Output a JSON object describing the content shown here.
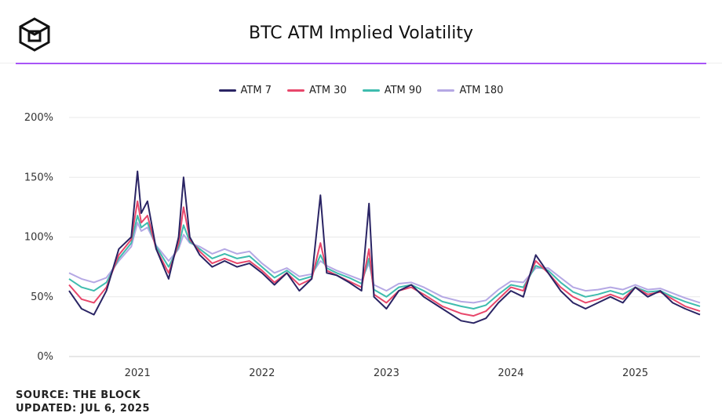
{
  "title": "BTC ATM Implied Volatility",
  "source": "SOURCE: THE BLOCK",
  "updated": "UPDATED: JUL 6, 2025",
  "logo": "the-block-cube-logo",
  "colors": {
    "accent": "#a855f7",
    "atm7": "#2a2464",
    "atm30": "#e8476b",
    "atm90": "#3ebcae",
    "atm180": "#b5a8e4"
  },
  "legend": [
    {
      "label": "ATM 7",
      "key": "atm7"
    },
    {
      "label": "ATM 30",
      "key": "atm30"
    },
    {
      "label": "ATM 90",
      "key": "atm90"
    },
    {
      "label": "ATM 180",
      "key": "atm180"
    }
  ],
  "chart_data": {
    "type": "line",
    "title": "BTC ATM Implied Volatility",
    "xlabel": "",
    "ylabel": "",
    "xlim": [
      2020.45,
      2025.52
    ],
    "ylim": [
      0,
      200
    ],
    "y_ticks": [
      "0%",
      "50%",
      "100%",
      "150%",
      "200%"
    ],
    "y_tick_values": [
      0,
      50,
      100,
      150,
      200
    ],
    "x_ticks": [
      "2021",
      "2022",
      "2023",
      "2024",
      "2025"
    ],
    "x_tick_values": [
      2021,
      2022,
      2023,
      2024,
      2025
    ],
    "grid": true,
    "legend_position": "top-center",
    "series": [
      {
        "name": "ATM 7",
        "color_key": "atm7",
        "x": [
          2020.45,
          2020.55,
          2020.65,
          2020.75,
          2020.85,
          2020.95,
          2021.0,
          2021.03,
          2021.08,
          2021.15,
          2021.25,
          2021.33,
          2021.37,
          2021.42,
          2021.5,
          2021.6,
          2021.7,
          2021.8,
          2021.9,
          2022.0,
          2022.1,
          2022.2,
          2022.3,
          2022.4,
          2022.47,
          2022.52,
          2022.6,
          2022.7,
          2022.8,
          2022.86,
          2022.9,
          2023.0,
          2023.1,
          2023.2,
          2023.3,
          2023.45,
          2023.6,
          2023.7,
          2023.8,
          2023.9,
          2024.0,
          2024.1,
          2024.2,
          2024.3,
          2024.4,
          2024.5,
          2024.6,
          2024.7,
          2024.8,
          2024.9,
          2025.0,
          2025.1,
          2025.2,
          2025.3,
          2025.4,
          2025.52
        ],
        "values": [
          55,
          40,
          35,
          55,
          90,
          100,
          155,
          120,
          130,
          90,
          65,
          100,
          150,
          100,
          85,
          75,
          80,
          75,
          78,
          70,
          60,
          70,
          55,
          65,
          135,
          70,
          68,
          62,
          55,
          128,
          50,
          40,
          55,
          60,
          50,
          40,
          30,
          28,
          32,
          45,
          55,
          50,
          85,
          70,
          55,
          45,
          40,
          45,
          50,
          45,
          58,
          50,
          55,
          45,
          40,
          35
        ]
      },
      {
        "name": "ATM 30",
        "color_key": "atm30",
        "x": [
          2020.45,
          2020.55,
          2020.65,
          2020.75,
          2020.85,
          2020.95,
          2021.0,
          2021.03,
          2021.08,
          2021.15,
          2021.25,
          2021.33,
          2021.37,
          2021.42,
          2021.5,
          2021.6,
          2021.7,
          2021.8,
          2021.9,
          2022.0,
          2022.1,
          2022.2,
          2022.3,
          2022.4,
          2022.47,
          2022.52,
          2022.6,
          2022.7,
          2022.8,
          2022.86,
          2022.9,
          2023.0,
          2023.1,
          2023.2,
          2023.3,
          2023.45,
          2023.6,
          2023.7,
          2023.8,
          2023.9,
          2024.0,
          2024.1,
          2024.2,
          2024.3,
          2024.4,
          2024.5,
          2024.6,
          2024.7,
          2024.8,
          2024.9,
          2025.0,
          2025.1,
          2025.2,
          2025.3,
          2025.4,
          2025.52
        ],
        "values": [
          60,
          48,
          45,
          58,
          85,
          98,
          130,
          112,
          118,
          90,
          70,
          95,
          125,
          98,
          88,
          78,
          82,
          78,
          80,
          72,
          62,
          70,
          60,
          65,
          95,
          72,
          68,
          63,
          58,
          90,
          52,
          45,
          55,
          58,
          52,
          42,
          36,
          34,
          38,
          48,
          58,
          55,
          80,
          70,
          58,
          50,
          45,
          48,
          52,
          48,
          58,
          52,
          54,
          48,
          42,
          38
        ]
      },
      {
        "name": "ATM 90",
        "color_key": "atm90",
        "x": [
          2020.45,
          2020.55,
          2020.65,
          2020.75,
          2020.85,
          2020.95,
          2021.0,
          2021.03,
          2021.08,
          2021.15,
          2021.25,
          2021.33,
          2021.37,
          2021.42,
          2021.5,
          2021.6,
          2021.7,
          2021.8,
          2021.9,
          2022.0,
          2022.1,
          2022.2,
          2022.3,
          2022.4,
          2022.47,
          2022.52,
          2022.6,
          2022.7,
          2022.8,
          2022.86,
          2022.9,
          2023.0,
          2023.1,
          2023.2,
          2023.3,
          2023.45,
          2023.6,
          2023.7,
          2023.8,
          2023.9,
          2024.0,
          2024.1,
          2024.2,
          2024.3,
          2024.4,
          2024.5,
          2024.6,
          2024.7,
          2024.8,
          2024.9,
          2025.0,
          2025.1,
          2025.2,
          2025.3,
          2025.4,
          2025.52
        ],
        "values": [
          65,
          58,
          55,
          62,
          82,
          95,
          118,
          108,
          112,
          92,
          75,
          92,
          110,
          96,
          90,
          82,
          86,
          82,
          84,
          75,
          66,
          72,
          64,
          67,
          85,
          74,
          70,
          66,
          61,
          82,
          56,
          50,
          58,
          60,
          55,
          46,
          42,
          40,
          43,
          52,
          60,
          58,
          76,
          72,
          62,
          54,
          50,
          52,
          55,
          52,
          58,
          54,
          55,
          50,
          46,
          42
        ]
      },
      {
        "name": "ATM 180",
        "color_key": "atm180",
        "x": [
          2020.45,
          2020.55,
          2020.65,
          2020.75,
          2020.85,
          2020.95,
          2021.0,
          2021.03,
          2021.08,
          2021.15,
          2021.25,
          2021.33,
          2021.37,
          2021.42,
          2021.5,
          2021.6,
          2021.7,
          2021.8,
          2021.9,
          2022.0,
          2022.1,
          2022.2,
          2022.3,
          2022.4,
          2022.47,
          2022.52,
          2022.6,
          2022.7,
          2022.8,
          2022.86,
          2022.9,
          2023.0,
          2023.1,
          2023.2,
          2023.3,
          2023.45,
          2023.6,
          2023.7,
          2023.8,
          2023.9,
          2024.0,
          2024.1,
          2024.2,
          2024.3,
          2024.4,
          2024.5,
          2024.6,
          2024.7,
          2024.8,
          2024.9,
          2025.0,
          2025.1,
          2025.2,
          2025.3,
          2025.4,
          2025.52
        ],
        "values": [
          70,
          65,
          62,
          66,
          80,
          92,
          112,
          105,
          108,
          93,
          80,
          90,
          102,
          95,
          92,
          86,
          90,
          86,
          88,
          78,
          70,
          74,
          67,
          69,
          80,
          76,
          72,
          68,
          64,
          78,
          60,
          55,
          61,
          62,
          58,
          50,
          46,
          45,
          47,
          56,
          63,
          62,
          74,
          74,
          66,
          58,
          55,
          56,
          58,
          56,
          60,
          56,
          57,
          53,
          49,
          45
        ]
      }
    ]
  }
}
